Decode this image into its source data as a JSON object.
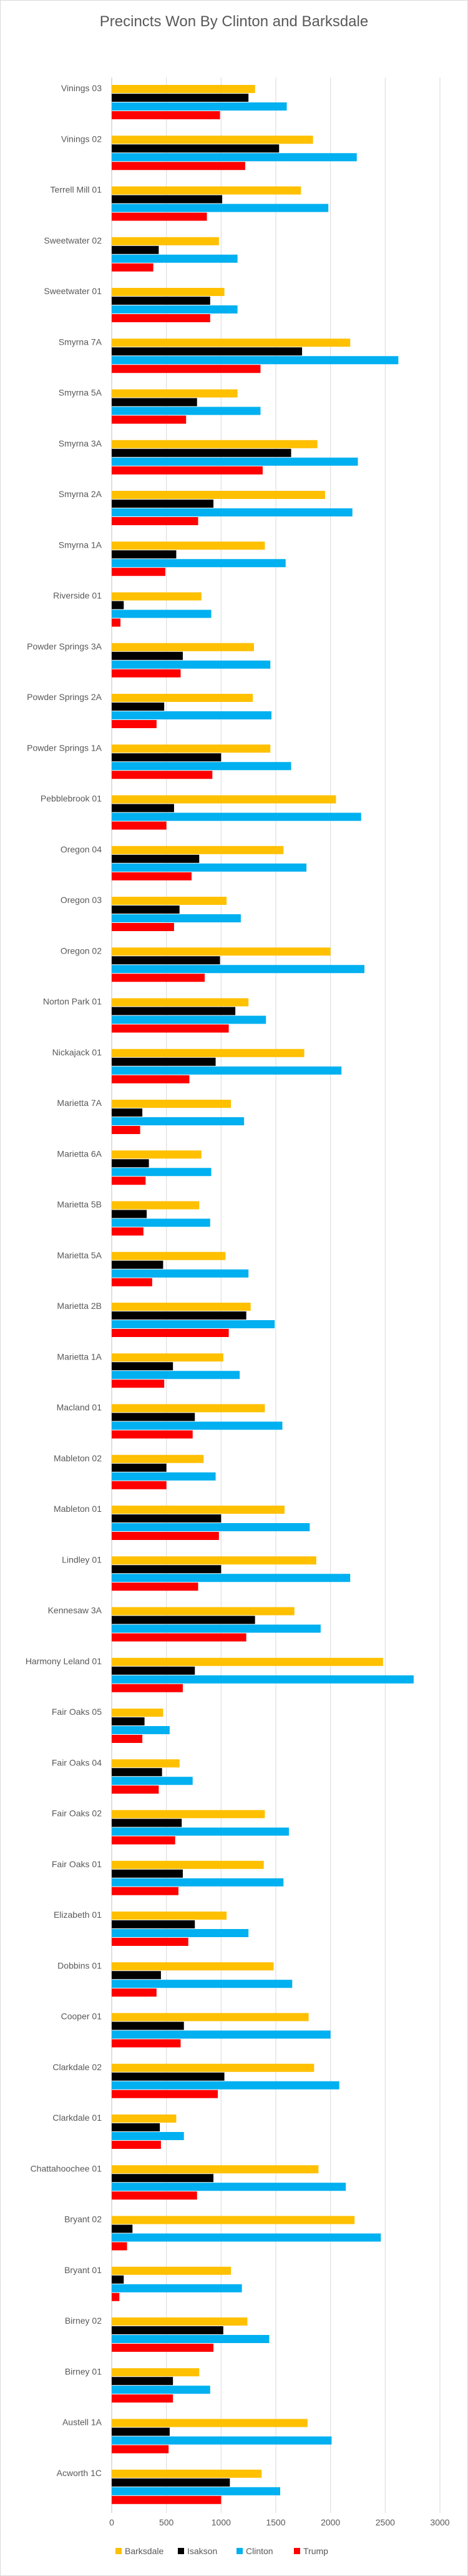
{
  "chart_data": {
    "type": "bar",
    "orientation": "horizontal",
    "title": "Precincts Won By Clinton and Barksdale",
    "xlim": [
      0,
      3000
    ],
    "x_ticks": [
      "0",
      "500",
      "1000",
      "1500",
      "2000",
      "2500",
      "3000"
    ],
    "grid": true,
    "legend_position": "bottom",
    "colors": {
      "Barksdale": "#FFC000",
      "Isakson": "#000000",
      "Clinton": "#00B0F0",
      "Trump": "#FF0000"
    },
    "categories": [
      "Vinings 03",
      "Vinings 02",
      "Terrell Mill 01",
      "Sweetwater 02",
      "Sweetwater 01",
      "Smyrna 7A",
      "Smyrna 5A",
      "Smyrna 3A",
      "Smyrna 2A",
      "Smyrna 1A",
      "Riverside 01",
      "Powder Springs 3A",
      "Powder Springs 2A",
      "Powder Springs 1A",
      "Pebblebrook 01",
      "Oregon 04",
      "Oregon 03",
      "Oregon 02",
      "Norton Park 01",
      "Nickajack 01",
      "Marietta 7A",
      "Marietta 6A",
      "Marietta 5B",
      "Marietta 5A",
      "Marietta 2B",
      "Marietta 1A",
      "Macland 01",
      "Mableton 02",
      "Mableton 01",
      "Lindley 01",
      "Kennesaw 3A",
      "Harmony Leland 01",
      "Fair Oaks 05",
      "Fair Oaks 04",
      "Fair Oaks 02",
      "Fair Oaks 01",
      "Elizabeth 01",
      "Dobbins 01",
      "Cooper 01",
      "Clarkdale 02",
      "Clarkdale 01",
      "Chattahoochee 01",
      "Bryant 02",
      "Bryant 01",
      "Birney 02",
      "Birney 01",
      "Austell 1A",
      "Acworth 1C"
    ],
    "series": [
      {
        "name": "Barksdale",
        "values": [
          1310,
          1840,
          1730,
          980,
          1030,
          2180,
          1150,
          1880,
          1950,
          1400,
          820,
          1300,
          1290,
          1450,
          2050,
          1570,
          1050,
          2000,
          1250,
          1760,
          1090,
          820,
          800,
          1040,
          1270,
          1020,
          1400,
          840,
          1580,
          1870,
          1670,
          2480,
          470,
          620,
          1400,
          1390,
          1050,
          1480,
          1800,
          1850,
          590,
          1890,
          2220,
          1090,
          1240,
          800,
          1790,
          1370
        ]
      },
      {
        "name": "Isakson",
        "values": [
          1250,
          1530,
          1010,
          430,
          900,
          1740,
          780,
          1640,
          930,
          590,
          110,
          650,
          480,
          1000,
          570,
          800,
          620,
          990,
          1130,
          950,
          280,
          340,
          320,
          470,
          1230,
          560,
          760,
          500,
          1000,
          1000,
          1310,
          760,
          300,
          460,
          640,
          650,
          760,
          450,
          660,
          1030,
          440,
          930,
          190,
          110,
          1020,
          560,
          530,
          1080
        ]
      },
      {
        "name": "Clinton",
        "values": [
          1600,
          2240,
          1980,
          1150,
          1150,
          2620,
          1360,
          2250,
          2200,
          1590,
          910,
          1450,
          1460,
          1640,
          2280,
          1780,
          1180,
          2310,
          1410,
          2100,
          1210,
          910,
          900,
          1250,
          1490,
          1170,
          1560,
          950,
          1810,
          2180,
          1910,
          2760,
          530,
          740,
          1620,
          1570,
          1250,
          1650,
          2000,
          2080,
          660,
          2140,
          2460,
          1190,
          1440,
          900,
          2010,
          1540
        ]
      },
      {
        "name": "Trump",
        "values": [
          990,
          1220,
          870,
          380,
          900,
          1360,
          680,
          1380,
          790,
          490,
          80,
          630,
          410,
          920,
          500,
          730,
          570,
          850,
          1070,
          710,
          260,
          310,
          290,
          370,
          1070,
          480,
          740,
          500,
          980,
          790,
          1230,
          650,
          280,
          430,
          580,
          610,
          700,
          410,
          630,
          970,
          450,
          780,
          140,
          70,
          930,
          560,
          520,
          1000
        ]
      }
    ]
  }
}
